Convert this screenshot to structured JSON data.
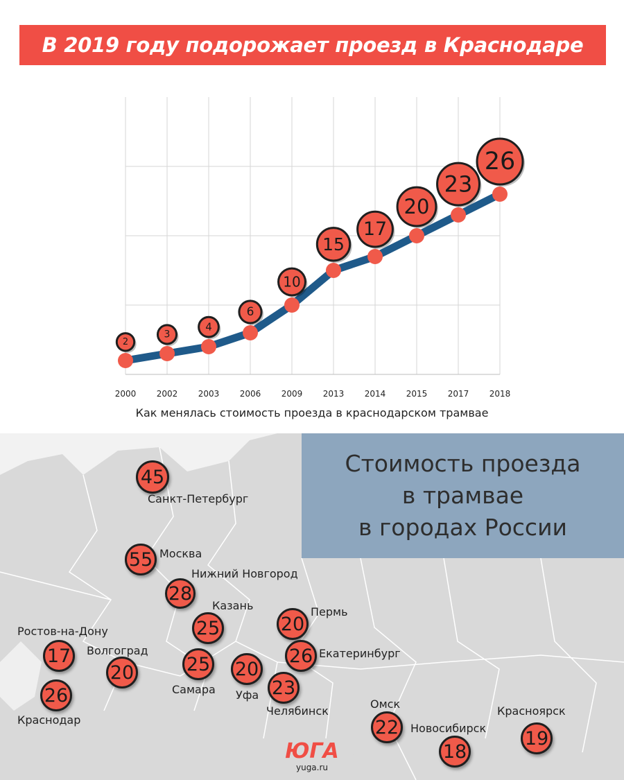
{
  "banner": {
    "title": "В 2019 году подорожает проезд в Краснодаре"
  },
  "chart_data": {
    "type": "line",
    "title": "",
    "xlabel": "Как менялась стоимость проезда в краснодарском трамвае",
    "ylabel": "",
    "categories": [
      "2000",
      "2002",
      "2003",
      "2006",
      "2009",
      "2013",
      "2014",
      "2015",
      "2017",
      "2018"
    ],
    "series": [
      {
        "values": [
          2,
          3,
          4,
          6,
          10,
          15,
          17,
          20,
          23,
          26
        ]
      }
    ],
    "ylim": [
      0,
      40
    ],
    "grid": true,
    "colors": {
      "line": "#1f5a8a",
      "point": "#f05a4a",
      "badge": "#f05a4a",
      "badge_border": "#1f1f1f",
      "grid": "#d6d6d6"
    }
  },
  "map": {
    "title_lines": [
      "Стоимость проезда",
      "в трамвае",
      "в городах России"
    ],
    "cities": [
      {
        "name": "Санкт-Петербург",
        "price": "45"
      },
      {
        "name": "Москва",
        "price": "55"
      },
      {
        "name": "Нижний Новгород",
        "price": "28"
      },
      {
        "name": "Казань",
        "price": "25"
      },
      {
        "name": "Пермь",
        "price": "20"
      },
      {
        "name": "Ростов-на-Дону",
        "price": "17"
      },
      {
        "name": "Волгоград",
        "price": "20"
      },
      {
        "name": "Самара",
        "price": "25"
      },
      {
        "name": "Уфа",
        "price": "20"
      },
      {
        "name": "Екатеринбург",
        "price": "26"
      },
      {
        "name": "Челябинск",
        "price": "23"
      },
      {
        "name": "Краснодар",
        "price": "26"
      },
      {
        "name": "Омск",
        "price": "22"
      },
      {
        "name": "Новосибирск",
        "price": "18"
      },
      {
        "name": "Красноярск",
        "price": "19"
      }
    ],
    "colors": {
      "land": "#d9d9d9",
      "sea": "#f2f2f2",
      "borders": "#ffffff",
      "title_bg": "#87a2bc"
    }
  },
  "logo": {
    "mark": "ЮГА",
    "site": "yuga.ru"
  }
}
